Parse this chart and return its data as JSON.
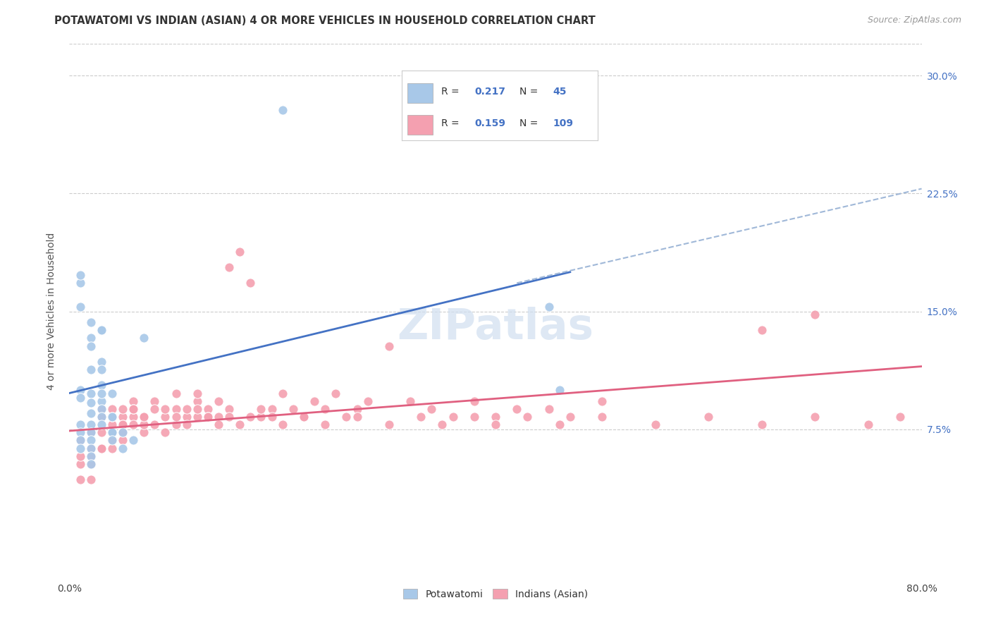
{
  "title": "POTAWATOMI VS INDIAN (ASIAN) 4 OR MORE VEHICLES IN HOUSEHOLD CORRELATION CHART",
  "source": "Source: ZipAtlas.com",
  "ylabel_label": "4 or more Vehicles in Household",
  "xlim": [
    0.0,
    0.8
  ],
  "ylim": [
    -0.02,
    0.32
  ],
  "ytick_positions": [
    0.075,
    0.15,
    0.225,
    0.3
  ],
  "ytick_labels": [
    "7.5%",
    "15.0%",
    "22.5%",
    "30.0%"
  ],
  "xtick_positions": [
    0.0,
    0.1,
    0.2,
    0.3,
    0.4,
    0.5,
    0.6,
    0.7,
    0.8
  ],
  "xtick_labels": [
    "0.0%",
    "",
    "",
    "",
    "",
    "",
    "",
    "",
    "80.0%"
  ],
  "legend_r_n": [
    {
      "R": "0.217",
      "N": "45",
      "color": "#a8c8e8"
    },
    {
      "R": "0.159",
      "N": "109",
      "color": "#f4a0b0"
    }
  ],
  "potawatomi_color": "#a8c8e8",
  "indian_color": "#f4a0b0",
  "trend_potawatomi_color": "#4472c4",
  "trend_indian_color": "#e06080",
  "trend_dashed_color": "#a0b8d8",
  "background_color": "#ffffff",
  "grid_color": "#cccccc",
  "watermark_color": "#d0dff0",
  "potawatomi_scatter": {
    "x": [
      0.2,
      0.02,
      0.03,
      0.03,
      0.04,
      0.04,
      0.04,
      0.01,
      0.01,
      0.01,
      0.02,
      0.02,
      0.02,
      0.02,
      0.03,
      0.03,
      0.03,
      0.03,
      0.04,
      0.05,
      0.06,
      0.01,
      0.01,
      0.01,
      0.01,
      0.02,
      0.02,
      0.02,
      0.02,
      0.02,
      0.02,
      0.03,
      0.03,
      0.03,
      0.04,
      0.04,
      0.05,
      0.01,
      0.01,
      0.02,
      0.02,
      0.03,
      0.45,
      0.46,
      0.07
    ],
    "y": [
      0.278,
      0.098,
      0.103,
      0.093,
      0.098,
      0.083,
      0.073,
      0.153,
      0.168,
      0.173,
      0.143,
      0.133,
      0.128,
      0.113,
      0.138,
      0.118,
      0.113,
      0.088,
      0.083,
      0.073,
      0.068,
      0.078,
      0.073,
      0.068,
      0.063,
      0.078,
      0.073,
      0.068,
      0.063,
      0.058,
      0.053,
      0.098,
      0.083,
      0.078,
      0.073,
      0.068,
      0.063,
      0.1,
      0.095,
      0.092,
      0.085,
      0.138,
      0.153,
      0.1,
      0.133
    ]
  },
  "indian_scatter": {
    "x": [
      0.01,
      0.01,
      0.02,
      0.02,
      0.02,
      0.03,
      0.03,
      0.03,
      0.04,
      0.04,
      0.04,
      0.04,
      0.04,
      0.05,
      0.05,
      0.05,
      0.05,
      0.06,
      0.06,
      0.06,
      0.06,
      0.07,
      0.07,
      0.07,
      0.08,
      0.08,
      0.09,
      0.09,
      0.1,
      0.1,
      0.1,
      0.11,
      0.11,
      0.12,
      0.12,
      0.12,
      0.13,
      0.13,
      0.14,
      0.14,
      0.15,
      0.15,
      0.16,
      0.17,
      0.18,
      0.19,
      0.2,
      0.21,
      0.22,
      0.23,
      0.24,
      0.25,
      0.26,
      0.27,
      0.28,
      0.3,
      0.32,
      0.34,
      0.36,
      0.38,
      0.4,
      0.42,
      0.45,
      0.47,
      0.5,
      0.7,
      0.01,
      0.01,
      0.02,
      0.02,
      0.03,
      0.03,
      0.04,
      0.04,
      0.05,
      0.05,
      0.06,
      0.07,
      0.08,
      0.09,
      0.1,
      0.11,
      0.12,
      0.13,
      0.14,
      0.15,
      0.16,
      0.17,
      0.18,
      0.19,
      0.2,
      0.22,
      0.24,
      0.27,
      0.3,
      0.33,
      0.35,
      0.38,
      0.4,
      0.43,
      0.46,
      0.5,
      0.55,
      0.6,
      0.65,
      0.7,
      0.75,
      0.78,
      0.65
    ],
    "y": [
      0.068,
      0.053,
      0.063,
      0.053,
      0.043,
      0.088,
      0.073,
      0.063,
      0.078,
      0.083,
      0.073,
      0.068,
      0.063,
      0.083,
      0.088,
      0.078,
      0.073,
      0.083,
      0.093,
      0.088,
      0.078,
      0.073,
      0.083,
      0.078,
      0.093,
      0.088,
      0.083,
      0.088,
      0.098,
      0.088,
      0.078,
      0.083,
      0.088,
      0.093,
      0.098,
      0.083,
      0.088,
      0.083,
      0.093,
      0.083,
      0.088,
      0.178,
      0.188,
      0.168,
      0.083,
      0.088,
      0.098,
      0.088,
      0.083,
      0.093,
      0.088,
      0.098,
      0.083,
      0.088,
      0.093,
      0.128,
      0.093,
      0.088,
      0.083,
      0.093,
      0.083,
      0.088,
      0.088,
      0.083,
      0.093,
      0.148,
      0.058,
      0.043,
      0.073,
      0.058,
      0.083,
      0.063,
      0.088,
      0.073,
      0.078,
      0.068,
      0.088,
      0.083,
      0.078,
      0.073,
      0.083,
      0.078,
      0.088,
      0.083,
      0.078,
      0.083,
      0.078,
      0.083,
      0.088,
      0.083,
      0.078,
      0.083,
      0.078,
      0.083,
      0.078,
      0.083,
      0.078,
      0.083,
      0.078,
      0.083,
      0.078,
      0.083,
      0.078,
      0.083,
      0.078,
      0.083,
      0.078,
      0.083,
      0.138
    ]
  },
  "trend_potawatomi_x0": 0.0,
  "trend_potawatomi_x1": 0.47,
  "trend_potawatomi_y0": 0.098,
  "trend_potawatomi_y1": 0.175,
  "trend_dashed_x0": 0.42,
  "trend_dashed_x1": 0.8,
  "trend_dashed_y0": 0.168,
  "trend_dashed_y1": 0.228,
  "trend_indian_x0": 0.0,
  "trend_indian_x1": 0.8,
  "trend_indian_y0": 0.074,
  "trend_indian_y1": 0.115
}
